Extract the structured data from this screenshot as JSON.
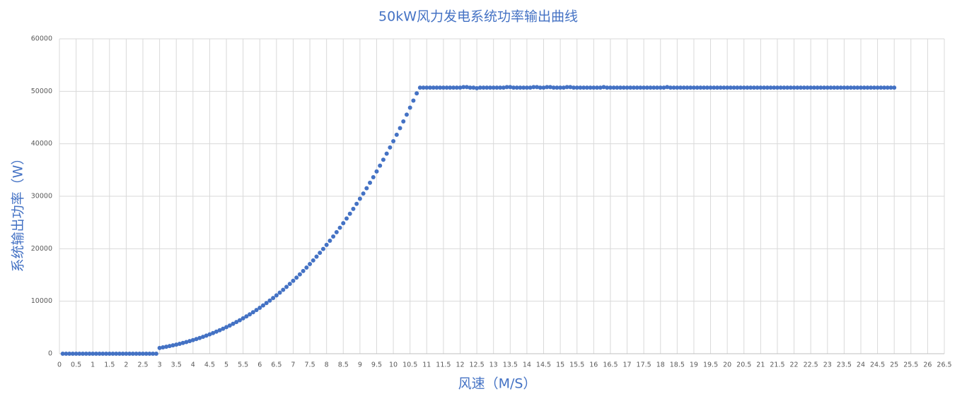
{
  "chart_data": {
    "type": "scatter",
    "title": "50kW风力发电系统功率输出曲线",
    "x_label": "风速（M/S）",
    "y_label": "系统输出功率（W）",
    "color": "#4472c4",
    "grid": true,
    "xlim": [
      0,
      26.5
    ],
    "xticks": [
      0,
      0.5,
      1,
      1.5,
      2,
      2.5,
      3,
      3.5,
      4,
      4.5,
      5,
      5.5,
      6,
      6.5,
      7,
      7.5,
      8,
      8.5,
      9,
      9.5,
      10,
      10.5,
      11,
      11.5,
      12,
      12.5,
      13,
      13.5,
      14,
      14.5,
      15,
      15.5,
      16,
      16.5,
      17,
      17.5,
      18,
      18.5,
      19,
      19.5,
      20,
      20.5,
      21,
      21.5,
      22,
      22.5,
      23,
      23.5,
      24,
      24.5,
      25,
      25.5,
      26,
      26.5
    ],
    "ylim": [
      0,
      60000
    ],
    "yticks": [
      0,
      10000,
      20000,
      30000,
      40000,
      50000,
      60000
    ],
    "x": [
      0.1,
      0.2,
      0.3,
      0.4,
      0.5,
      0.6,
      0.7,
      0.8,
      0.9,
      1.0,
      1.1,
      1.2,
      1.3,
      1.4,
      1.5,
      1.6,
      1.7,
      1.8,
      1.9,
      2.0,
      2.1,
      2.2,
      2.3,
      2.4,
      2.5,
      2.6,
      2.7,
      2.8,
      2.9,
      3.0,
      3.1,
      3.2,
      3.3,
      3.4,
      3.5,
      3.6,
      3.7,
      3.8,
      3.9,
      4.0,
      4.1,
      4.2,
      4.3,
      4.4,
      4.5,
      4.6,
      4.7,
      4.8,
      4.9,
      5.0,
      5.1,
      5.2,
      5.3,
      5.4,
      5.5,
      5.6,
      5.7,
      5.8,
      5.9,
      6.0,
      6.1,
      6.2,
      6.3,
      6.4,
      6.5,
      6.6,
      6.7,
      6.8,
      6.9,
      7.0,
      7.1,
      7.2,
      7.3,
      7.4,
      7.5,
      7.6,
      7.7,
      7.8,
      7.9,
      8.0,
      8.1,
      8.2,
      8.3,
      8.4,
      8.5,
      8.6,
      8.7,
      8.8,
      8.9,
      9.0,
      9.1,
      9.2,
      9.3,
      9.4,
      9.5,
      9.6,
      9.7,
      9.8,
      9.9,
      10.0,
      10.1,
      10.2,
      10.3,
      10.4,
      10.5,
      10.6,
      10.7,
      10.8,
      10.9,
      11.0,
      11.1,
      11.2,
      11.3,
      11.4,
      11.5,
      11.6,
      11.7,
      11.8,
      11.9,
      12.0,
      12.1,
      12.2,
      12.3,
      12.4,
      12.5,
      12.6,
      12.7,
      12.8,
      12.9,
      13.0,
      13.1,
      13.2,
      13.3,
      13.4,
      13.5,
      13.6,
      13.7,
      13.8,
      13.9,
      14.0,
      14.1,
      14.2,
      14.3,
      14.4,
      14.5,
      14.6,
      14.7,
      14.8,
      14.9,
      15.0,
      15.1,
      15.2,
      15.3,
      15.4,
      15.5,
      15.6,
      15.7,
      15.8,
      15.9,
      16.0,
      16.1,
      16.2,
      16.3,
      16.4,
      16.5,
      16.6,
      16.7,
      16.8,
      16.9,
      17.0,
      17.1,
      17.2,
      17.3,
      17.4,
      17.5,
      17.6,
      17.7,
      17.8,
      17.9,
      18.0,
      18.1,
      18.2,
      18.3,
      18.4,
      18.5,
      18.6,
      18.7,
      18.8,
      18.9,
      19.0,
      19.1,
      19.2,
      19.3,
      19.4,
      19.5,
      19.6,
      19.7,
      19.8,
      19.9,
      20.0,
      20.1,
      20.2,
      20.3,
      20.4,
      20.5,
      20.6,
      20.7,
      20.8,
      20.9,
      21.0,
      21.1,
      21.2,
      21.3,
      21.4,
      21.5,
      21.6,
      21.7,
      21.8,
      21.9,
      22.0,
      22.1,
      22.2,
      22.3,
      22.4,
      22.5,
      22.6,
      22.7,
      22.8,
      22.9,
      23.0,
      23.1,
      23.2,
      23.3,
      23.4,
      23.5,
      23.6,
      23.7,
      23.8,
      23.9,
      24.0,
      24.1,
      24.2,
      24.3,
      24.4,
      24.5,
      24.6,
      24.7,
      24.8,
      24.9,
      25.0
    ],
    "values": [
      0,
      0,
      0,
      0,
      0,
      0,
      0,
      0,
      0,
      0,
      0,
      0,
      0,
      0,
      0,
      0,
      0,
      0,
      0,
      0,
      0,
      0,
      0,
      0,
      0,
      0,
      0,
      0,
      0,
      1094,
      1207,
      1327,
      1455,
      1592,
      1736,
      1890,
      2051,
      2222,
      2402,
      2592,
      2791,
      3001,
      3220,
      3450,
      3691,
      3942,
      4205,
      4479,
      4765,
      5063,
      5372,
      5695,
      6030,
      6377,
      6738,
      7112,
      7500,
      7902,
      8318,
      8748,
      9193,
      9652,
      10127,
      10617,
      11122,
      11644,
      12181,
      12734,
      13305,
      13892,
      14495,
      15117,
      15755,
      16411,
      17086,
      17779,
      18490,
      19219,
      19968,
      20736,
      21523,
      22330,
      23157,
      24005,
      24872,
      25760,
      26669,
      27600,
      28551,
      29525,
      30520,
      31537,
      32576,
      33639,
      34724,
      35832,
      36963,
      38118,
      39297,
      40500,
      41727,
      42979,
      44255,
      45557,
      46884,
      48236,
      49614,
      50700,
      50700,
      50700,
      50700,
      50700,
      50700,
      50700,
      50700,
      50700,
      50700,
      50700,
      50700,
      50700,
      50800,
      50800,
      50700,
      50700,
      50600,
      50700,
      50700,
      50700,
      50700,
      50700,
      50700,
      50700,
      50700,
      50800,
      50800,
      50700,
      50700,
      50700,
      50700,
      50700,
      50700,
      50800,
      50800,
      50700,
      50700,
      50800,
      50800,
      50700,
      50700,
      50700,
      50700,
      50800,
      50800,
      50700,
      50700,
      50700,
      50700,
      50700,
      50700,
      50700,
      50700,
      50700,
      50800,
      50700,
      50700,
      50700,
      50700,
      50700,
      50700,
      50700,
      50700,
      50700,
      50700,
      50700,
      50700,
      50700,
      50700,
      50700,
      50700,
      50700,
      50700,
      50800,
      50700,
      50700,
      50700,
      50700,
      50700,
      50700,
      50700,
      50700,
      50700,
      50700,
      50700,
      50700,
      50700,
      50700,
      50700,
      50700,
      50700,
      50700,
      50700,
      50700,
      50700,
      50700,
      50700,
      50700,
      50700,
      50700,
      50700,
      50700,
      50700,
      50700,
      50700,
      50700,
      50700,
      50700,
      50700,
      50700,
      50700,
      50700,
      50700,
      50700,
      50700,
      50700,
      50700,
      50700,
      50700,
      50700,
      50700,
      50700,
      50700,
      50700,
      50700,
      50700,
      50700,
      50700,
      50700,
      50700,
      50700,
      50700,
      50700,
      50700,
      50700,
      50700,
      50700,
      50700,
      50700,
      50700,
      50700,
      50700
    ]
  }
}
